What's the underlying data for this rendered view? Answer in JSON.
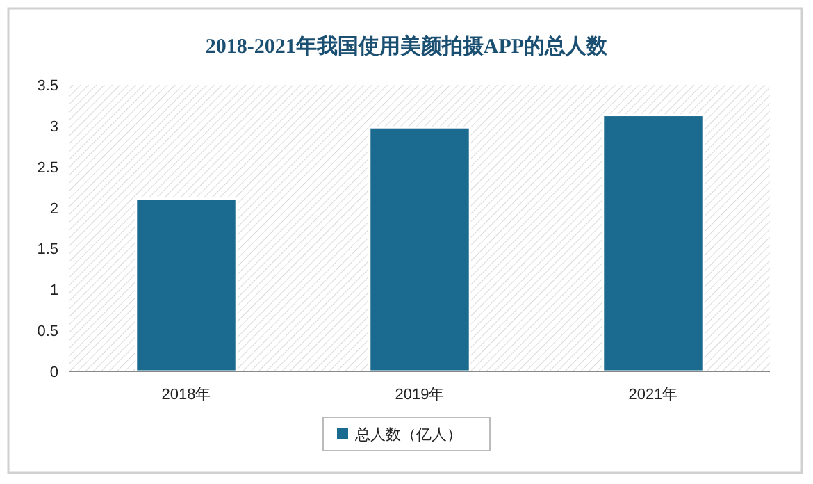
{
  "chart_data": {
    "type": "bar",
    "title": "2018-2021年我国使用美颜拍摄APP的总人数",
    "categories": [
      "2018年",
      "2019年",
      "2021年"
    ],
    "series": [
      {
        "name": "总人数（亿人）",
        "color": "#1b6a8f",
        "values": [
          2.11,
          2.98,
          3.13
        ]
      }
    ],
    "ylim": [
      0,
      3.5
    ],
    "yticks": [
      0,
      0.5,
      1,
      1.5,
      2,
      2.5,
      3,
      3.5
    ],
    "legend": "bottom",
    "grid": false
  }
}
